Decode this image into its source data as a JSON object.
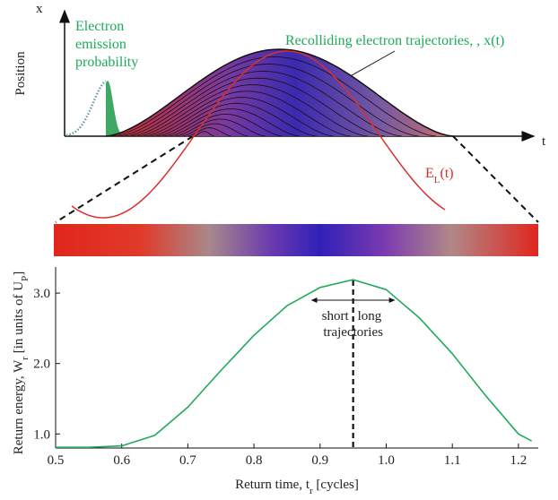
{
  "diagram": {
    "x_axis_label": "x",
    "y_axis_label": "Position",
    "t_label": "t",
    "emission_label": [
      "Electron",
      "emission",
      "probability"
    ],
    "trajectories_label": "Recolliding electron trajectories, , x(t)",
    "field_label": [
      "E",
      "L",
      "(t)"
    ]
  },
  "chart_data": {
    "type": "line",
    "x": [
      0.5,
      0.55,
      0.6,
      0.65,
      0.7,
      0.75,
      0.8,
      0.85,
      0.9,
      0.95,
      1.0,
      1.05,
      1.1,
      1.15,
      1.2,
      1.22
    ],
    "series": [
      {
        "color": "#1faa5a",
        "values": [
          0.81,
          0.81,
          0.83,
          0.98,
          1.38,
          1.9,
          2.4,
          2.82,
          3.08,
          3.19,
          3.05,
          2.65,
          2.14,
          1.55,
          1.0,
          0.9
        ]
      }
    ],
    "xlim": [
      0.5,
      1.23
    ],
    "ylim": [
      0.8,
      3.37
    ],
    "xticks": [
      0.5,
      0.6,
      0.7,
      0.8,
      0.9,
      {
        "value": 1,
        "label": "1.0"
      },
      1.1,
      1.2
    ],
    "yticks": [
      {
        "value": 1,
        "label": "1.0"
      },
      {
        "value": 2,
        "label": "2.0"
      },
      {
        "value": 3,
        "label": "3.0"
      }
    ],
    "xlabel": [
      "Return  time,  t",
      "r",
      " [cycles]"
    ],
    "ylabel": [
      "Return energy,   W",
      "r",
      " [in units of U",
      "P",
      "]"
    ],
    "annotation_x": 0.95,
    "annotations": {
      "short": "short",
      "long": "long",
      "trajectories": "trajectories"
    }
  }
}
